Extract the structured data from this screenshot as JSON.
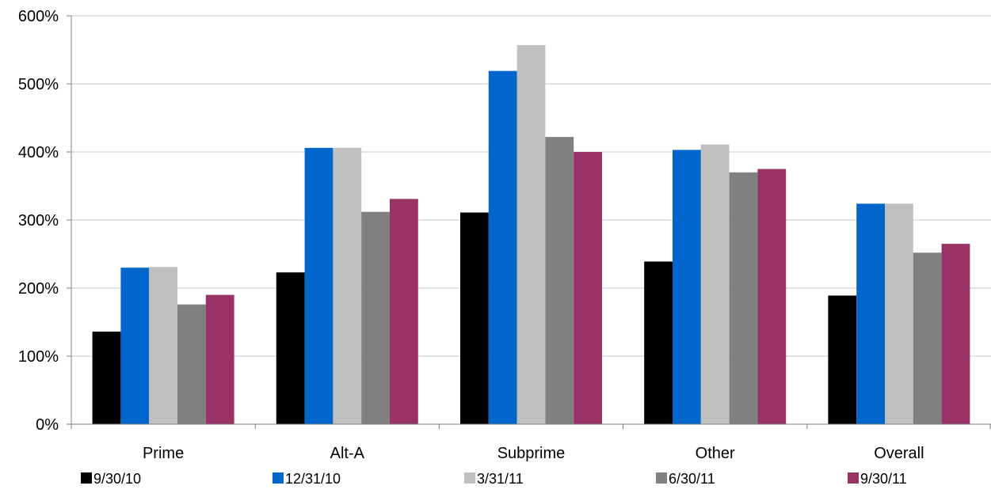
{
  "chart_data": {
    "type": "bar",
    "categories": [
      "Prime",
      "Alt-A",
      "Subprime",
      "Other",
      "Overall"
    ],
    "series": [
      {
        "name": "9/30/10",
        "color": "#000000",
        "values": [
          136,
          223,
          311,
          239,
          189
        ]
      },
      {
        "name": "12/31/10",
        "color": "#0066CC",
        "values": [
          230,
          406,
          519,
          403,
          324
        ]
      },
      {
        "name": "3/31/11",
        "color": "#C0C0C0",
        "values": [
          231,
          406,
          557,
          411,
          324
        ]
      },
      {
        "name": "6/30/11",
        "color": "#808080",
        "values": [
          176,
          312,
          422,
          370,
          252
        ]
      },
      {
        "name": "9/30/11",
        "color": "#993366",
        "values": [
          190,
          331,
          400,
          375,
          265
        ]
      }
    ],
    "ylim": [
      0,
      600
    ],
    "yticks": [
      0,
      100,
      200,
      300,
      400,
      500,
      600
    ],
    "ytick_labels": [
      "0%",
      "100%",
      "200%",
      "300%",
      "400%",
      "500%",
      "600%"
    ],
    "title": "",
    "xlabel": "",
    "ylabel": "",
    "grid": true,
    "legend_position": "bottom"
  }
}
